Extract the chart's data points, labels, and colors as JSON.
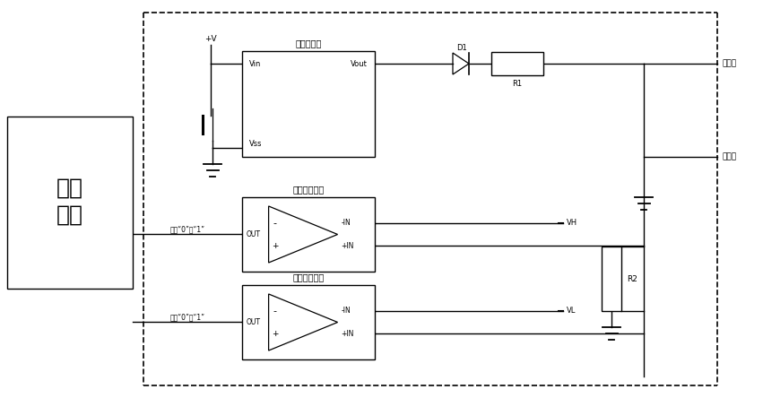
{
  "bg": "#ffffff",
  "lc": "#000000",
  "texts": {
    "sys_line1": "系统",
    "sys_line2": "电路",
    "vgen": "电压发生器",
    "vin": "Vin",
    "vout": "Vout",
    "vss": "Vss",
    "hcomp": "高电压比较器",
    "lcomp": "低电压比较器",
    "pv": "+V",
    "d1": "D1",
    "r1": "R1",
    "r2": "R2",
    "vh": "VH",
    "vl": "VL",
    "load": "负载线",
    "ret": "回路线",
    "hout": "输出“0”或“1”",
    "lout": "输出“0”或“1”",
    "out": "OUT",
    "plus_in": "+IN",
    "minus_in": "-IN"
  }
}
